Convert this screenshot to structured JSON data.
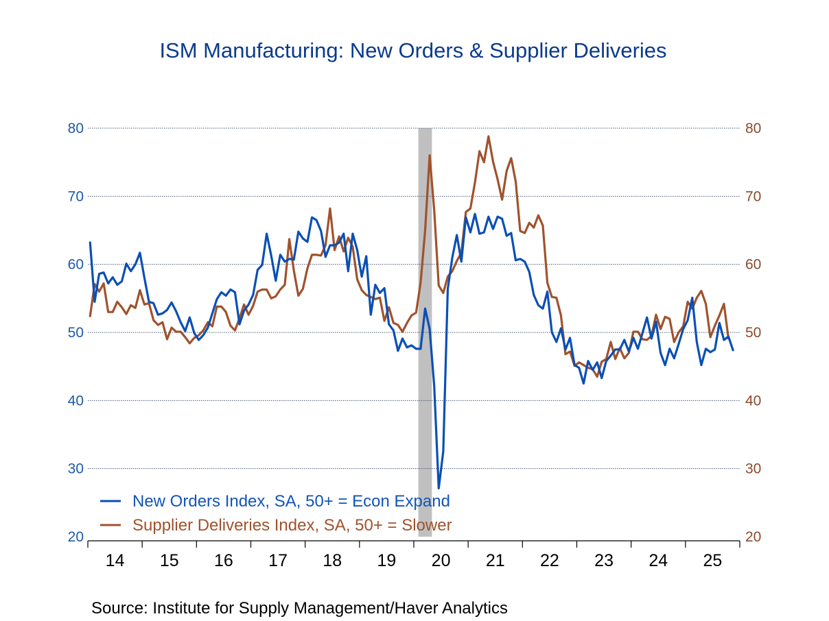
{
  "chart_data": {
    "type": "line",
    "title": "ISM Manufacturing: New Orders & Supplier Deliveries",
    "source": "Source:  Institute for Supply Management/Haver Analytics",
    "xlabel": "",
    "ylabel_left": "",
    "ylabel_right": "",
    "ylim": [
      20,
      80
    ],
    "yticks": [
      20,
      30,
      40,
      50,
      60,
      70,
      80
    ],
    "y2lim": [
      20,
      80
    ],
    "y2ticks": [
      20,
      30,
      40,
      50,
      60,
      70,
      80
    ],
    "grid": true,
    "x_start": "2014-01",
    "x_end": "2025-12",
    "frequency": "monthly",
    "xtick_labels": [
      "14",
      "15",
      "16",
      "17",
      "18",
      "19",
      "20",
      "21",
      "22",
      "23",
      "24",
      "25"
    ],
    "recession_shading": {
      "start": "2020-02",
      "end": "2020-04",
      "color": "#c0c0c0"
    },
    "legend_position": "bottom-left",
    "series": [
      {
        "name": "New Orders Index, SA, 50+ = Econ Expand",
        "axis": "left",
        "color": "#0a4fb5",
        "start": "2014-01",
        "values": [
          63.2,
          54.5,
          58.6,
          58.8,
          57.2,
          58.1,
          57.0,
          57.5,
          60.1,
          59.0,
          60.0,
          61.7,
          58.0,
          54.5,
          54.3,
          52.6,
          52.8,
          53.3,
          54.4,
          53.1,
          51.5,
          50.2,
          52.2,
          49.9,
          48.9,
          49.6,
          50.7,
          52.8,
          54.9,
          55.9,
          55.4,
          56.3,
          55.9,
          51.2,
          53.2,
          54.1,
          55.5,
          59.2,
          59.9,
          64.5,
          61.3,
          57.6,
          61.4,
          60.4,
          60.8,
          60.7,
          64.8,
          63.8,
          63.3,
          66.9,
          66.5,
          64.9,
          61.1,
          62.8,
          62.8,
          63.2,
          64.5,
          59.0,
          64.5,
          62.1,
          58.2,
          61.2,
          52.6,
          57.0,
          55.8,
          56.5,
          51.2,
          50.3,
          47.3,
          49.1,
          47.8,
          48.1,
          47.6,
          47.6,
          53.5,
          50.5,
          42.2,
          27.1,
          32.5,
          56.4,
          61.0,
          64.3,
          60.4,
          66.9,
          64.7,
          67.4,
          64.5,
          64.7,
          67.0,
          65.2,
          67.0,
          66.7,
          64.2,
          64.6,
          60.6,
          60.8,
          60.4,
          58.9,
          55.5,
          54.0,
          53.5,
          56.0,
          50.0,
          48.6,
          50.6,
          47.5,
          49.2,
          45.2,
          44.8,
          42.5,
          45.8,
          44.5,
          45.6,
          43.3,
          45.8,
          46.6,
          47.5,
          47.5,
          48.9,
          47.2,
          49.2,
          47.6,
          49.9,
          52.2,
          49.1,
          51.6,
          47.0,
          45.2,
          47.6,
          46.2,
          48.3,
          50.5,
          51.8,
          55.1,
          48.6,
          45.2,
          47.6,
          47.1,
          47.5,
          51.4,
          48.9,
          49.4,
          47.4
        ]
      },
      {
        "name": "Supplier Deliveries Index, SA, 50+ = Slower",
        "axis": "right",
        "color": "#a0522d",
        "start": "2014-01",
        "values": [
          52.4,
          57.1,
          56.0,
          57.2,
          53.0,
          53.0,
          54.5,
          53.7,
          52.7,
          54.0,
          53.6,
          56.2,
          54.1,
          54.3,
          51.8,
          51.1,
          51.5,
          49.0,
          50.7,
          50.1,
          50.1,
          49.3,
          48.4,
          49.2,
          49.6,
          50.3,
          51.5,
          50.9,
          53.8,
          53.8,
          53.0,
          51.0,
          50.3,
          52.1,
          54.1,
          52.6,
          53.9,
          56.0,
          56.3,
          56.3,
          55.0,
          55.3,
          56.3,
          57.0,
          63.7,
          59.1,
          55.4,
          56.4,
          59.4,
          61.4,
          61.4,
          61.3,
          62.8,
          68.2,
          62.1,
          64.1,
          61.9,
          63.9,
          62.6,
          57.8,
          56.2,
          55.5,
          55.2,
          54.9,
          55.1,
          51.7,
          53.7,
          51.4,
          51.1,
          50.1,
          51.4,
          52.5,
          52.9,
          57.3,
          65.0,
          76.0,
          68.0,
          56.9,
          55.8,
          58.2,
          59.0,
          60.5,
          61.7,
          67.7,
          68.2,
          72.0,
          76.6,
          75.0,
          78.8,
          75.1,
          72.5,
          69.5,
          73.7,
          75.6,
          72.2,
          64.9,
          64.6,
          66.1,
          65.4,
          67.2,
          65.7,
          57.3,
          55.2,
          55.1,
          52.5,
          46.8,
          47.2,
          45.1,
          45.6,
          45.2,
          44.8,
          44.6,
          43.5,
          45.7,
          46.1,
          48.6,
          46.1,
          47.7,
          46.2,
          47.0,
          50.1,
          50.1,
          49.0,
          48.9,
          49.5,
          52.6,
          50.5,
          52.3,
          52.0,
          48.6,
          50.0,
          50.9,
          54.5,
          53.5,
          55.1,
          56.1,
          54.2,
          49.3,
          51.0,
          52.5,
          54.2,
          49.1
        ]
      }
    ]
  }
}
